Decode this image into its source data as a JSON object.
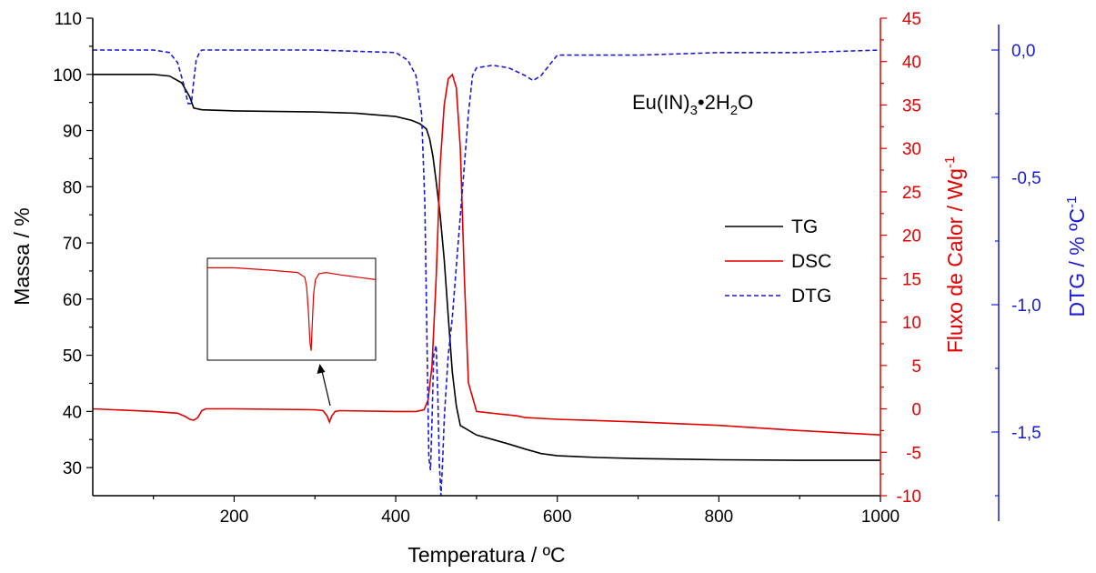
{
  "chart_data": {
    "type": "line",
    "title": "",
    "xlabel": "Temperatura / ºC",
    "xlim": [
      25,
      1000
    ],
    "xticks": [
      200,
      400,
      600,
      800,
      1000
    ],
    "y_left": {
      "label": "Massa / %",
      "ylim": [
        25,
        110
      ],
      "ticks": [
        30,
        40,
        50,
        60,
        70,
        80,
        90,
        100,
        110
      ],
      "color": "#000000"
    },
    "y_right_red": {
      "label": "Fluxo de Calor / Wg",
      "label_sup": "-1",
      "ylim": [
        -10,
        45
      ],
      "ticks": [
        -10,
        -5,
        0,
        5,
        10,
        15,
        20,
        25,
        30,
        35,
        40,
        45
      ],
      "color": "#e00000"
    },
    "y_right_blue": {
      "label": "DTG / % ºC",
      "label_sup": "-1",
      "ylim": [
        -1.85,
        0.1
      ],
      "ticks": [
        0.0,
        -0.5,
        -1.0,
        -1.5
      ],
      "tick_labels": [
        "0,0",
        "-0,5",
        "-1,0",
        "-1,5"
      ],
      "color": "#1a1ad6"
    },
    "annotation": {
      "text_main": "Eu(IN)",
      "sub1": "3",
      "mid": "•2H",
      "sub2": "2",
      "end": "O"
    },
    "legend_position": "center-right",
    "series": [
      {
        "name": "TG",
        "color": "#000000",
        "style": "solid",
        "axis": "left",
        "x": [
          25,
          100,
          120,
          135,
          145,
          150,
          160,
          200,
          300,
          350,
          400,
          420,
          430,
          438,
          442,
          446,
          450,
          455,
          460,
          465,
          470,
          475,
          480,
          500,
          520,
          540,
          560,
          580,
          600,
          650,
          700,
          800,
          900,
          1000
        ],
        "y": [
          100,
          100,
          99.7,
          98.5,
          96,
          94,
          93.7,
          93.5,
          93.3,
          93.1,
          92.5,
          91.8,
          91.2,
          90.3,
          88.5,
          85.5,
          81,
          75,
          67,
          57,
          47,
          41,
          37.5,
          35.8,
          35,
          34.2,
          33.3,
          32.5,
          32.1,
          31.8,
          31.6,
          31.4,
          31.3,
          31.3
        ]
      },
      {
        "name": "DSC",
        "color": "#e00000",
        "style": "solid",
        "axis": "right_red",
        "x": [
          25,
          100,
          130,
          140,
          145,
          150,
          155,
          160,
          165,
          200,
          300,
          310,
          315,
          318,
          321,
          325,
          330,
          400,
          425,
          435,
          440,
          445,
          450,
          455,
          460,
          465,
          470,
          475,
          480,
          485,
          490,
          500,
          530,
          550,
          560,
          600,
          700,
          800,
          900,
          1000
        ],
        "y": [
          0,
          -0.3,
          -0.5,
          -0.9,
          -1.2,
          -1.3,
          -1.0,
          -0.2,
          0,
          0,
          -0.1,
          -0.2,
          -0.8,
          -1.5,
          -0.8,
          -0.3,
          -0.2,
          -0.3,
          -0.3,
          -0.1,
          1,
          5,
          15,
          28,
          35,
          38,
          38.5,
          37,
          30,
          15,
          3,
          -0.3,
          -0.6,
          -0.8,
          -1.0,
          -1.2,
          -1.5,
          -1.9,
          -2.5,
          -3.0
        ]
      },
      {
        "name": "DTG",
        "color": "#1a1ad6",
        "style": "dashed",
        "axis": "right_blue",
        "x": [
          25,
          100,
          120,
          130,
          138,
          143,
          147,
          150,
          153,
          157,
          160,
          200,
          300,
          400,
          415,
          425,
          432,
          436,
          439,
          441,
          443,
          445,
          447,
          450,
          452,
          454,
          456,
          458,
          460,
          462,
          465,
          470,
          475,
          480,
          485,
          490,
          495,
          500,
          520,
          540,
          560,
          570,
          580,
          600,
          700,
          800,
          900,
          1000
        ],
        "y": [
          0.0,
          0.0,
          -0.01,
          -0.05,
          -0.14,
          -0.21,
          -0.21,
          -0.12,
          -0.04,
          -0.01,
          0.0,
          0.0,
          0.0,
          -0.01,
          -0.04,
          -0.1,
          -0.25,
          -0.6,
          -1.2,
          -1.6,
          -1.65,
          -1.45,
          -1.2,
          -1.16,
          -1.35,
          -1.62,
          -1.75,
          -1.62,
          -1.45,
          -1.35,
          -1.2,
          -1.05,
          -0.85,
          -0.65,
          -0.45,
          -0.25,
          -0.1,
          -0.07,
          -0.06,
          -0.07,
          -0.1,
          -0.12,
          -0.1,
          -0.02,
          -0.02,
          -0.01,
          -0.01,
          0.0
        ]
      }
    ],
    "inset": {
      "x": [
        25,
        100,
        200,
        280,
        300,
        305,
        310,
        315,
        318,
        321,
        325,
        330,
        340,
        360,
        400,
        450,
        500
      ],
      "y": [
        0,
        0,
        -0.1,
        -0.2,
        -0.4,
        -0.8,
        -1.8,
        -3.2,
        -3.5,
        -2.4,
        -1.1,
        -0.5,
        -0.25,
        -0.2,
        -0.3,
        -0.4,
        -0.5
      ]
    }
  }
}
